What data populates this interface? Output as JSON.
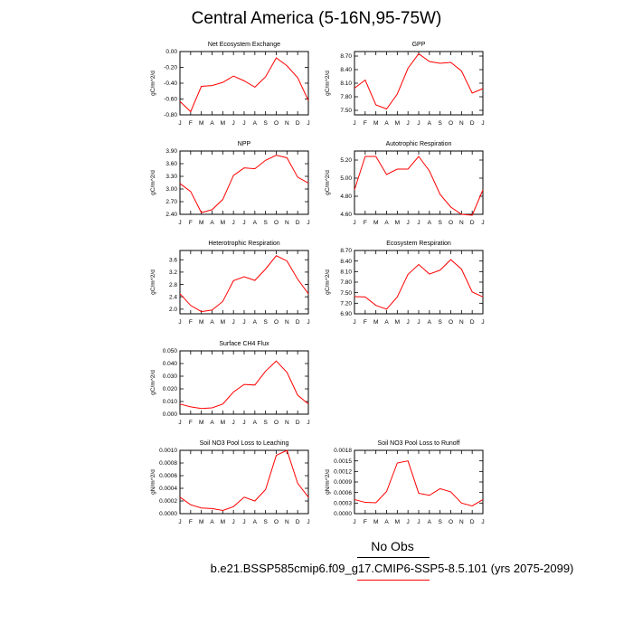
{
  "page": {
    "title": "Central America (5-16N,95-75W)",
    "legend_label": "No Obs",
    "caption": "b.e21.BSSP585cmip6.f09_g17.CMIP6-SSP5-8.5.101 (yrs 2075-2099)",
    "line_color": "#ff0000"
  },
  "chart_data": [
    {
      "type": "line",
      "title": "Net Ecosystem Exchange",
      "ylabel": "gC/m^2/d",
      "categories": [
        "J",
        "F",
        "M",
        "A",
        "M",
        "J",
        "J",
        "A",
        "S",
        "O",
        "N",
        "D",
        "J"
      ],
      "ylim": [
        -0.8,
        0.0
      ],
      "yticks": [
        "0.00",
        "-0.20",
        "-0.40",
        "-0.60",
        "-0.80"
      ],
      "ytick_values": [
        0.0,
        -0.2,
        -0.4,
        -0.6,
        -0.8
      ],
      "values": [
        -0.63,
        -0.76,
        -0.44,
        -0.43,
        -0.39,
        -0.31,
        -0.37,
        -0.45,
        -0.32,
        -0.08,
        -0.18,
        -0.33,
        -0.62
      ]
    },
    {
      "type": "line",
      "title": "GPP",
      "ylabel": "gC/m^2/d",
      "categories": [
        "J",
        "F",
        "M",
        "A",
        "M",
        "J",
        "J",
        "A",
        "S",
        "O",
        "N",
        "D",
        "J"
      ],
      "ylim": [
        7.4,
        8.8
      ],
      "yticks": [
        "8.70",
        "8.40",
        "8.10",
        "7.80",
        "7.50"
      ],
      "ytick_values": [
        8.7,
        8.4,
        8.1,
        7.8,
        7.5
      ],
      "values": [
        7.99,
        8.17,
        7.62,
        7.53,
        7.86,
        8.43,
        8.75,
        8.58,
        8.54,
        8.56,
        8.37,
        7.88,
        7.98
      ]
    },
    {
      "type": "line",
      "title": "NPP",
      "ylabel": "gC/m^2/d",
      "categories": [
        "J",
        "F",
        "M",
        "A",
        "M",
        "J",
        "J",
        "A",
        "S",
        "O",
        "N",
        "D",
        "J"
      ],
      "ylim": [
        2.4,
        3.9
      ],
      "yticks": [
        "3.90",
        "3.60",
        "3.30",
        "3.00",
        "2.70",
        "2.40"
      ],
      "ytick_values": [
        3.9,
        3.6,
        3.3,
        3.0,
        2.7,
        2.4
      ],
      "values": [
        3.13,
        2.94,
        2.44,
        2.51,
        2.75,
        3.32,
        3.5,
        3.48,
        3.68,
        3.8,
        3.74,
        3.28,
        3.14
      ]
    },
    {
      "type": "line",
      "title": "Autotrophic Respiration",
      "ylabel": "gC/m^2/d",
      "categories": [
        "J",
        "F",
        "M",
        "A",
        "M",
        "J",
        "J",
        "A",
        "S",
        "O",
        "N",
        "D",
        "J"
      ],
      "ylim": [
        4.6,
        5.3
      ],
      "yticks": [
        "5.20",
        "5.00",
        "4.80",
        "4.60"
      ],
      "ytick_values": [
        5.2,
        5.0,
        4.8,
        4.6
      ],
      "values": [
        4.87,
        5.24,
        5.24,
        5.04,
        5.1,
        5.1,
        5.24,
        5.08,
        4.82,
        4.68,
        4.6,
        4.59,
        4.87
      ]
    },
    {
      "type": "line",
      "title": "Heterotrophic Respiration",
      "ylabel": "gC/m^2/d",
      "categories": [
        "J",
        "F",
        "M",
        "A",
        "M",
        "J",
        "J",
        "A",
        "S",
        "O",
        "N",
        "D",
        "J"
      ],
      "ylim": [
        1.85,
        3.9
      ],
      "yticks": [
        "3.6",
        "3.2",
        "2.8",
        "2.4",
        "2.0"
      ],
      "ytick_values": [
        3.6,
        3.2,
        2.8,
        2.4,
        2.0
      ],
      "values": [
        2.5,
        2.12,
        1.92,
        1.97,
        2.25,
        2.92,
        3.05,
        2.93,
        3.3,
        3.73,
        3.56,
        2.97,
        2.5
      ]
    },
    {
      "type": "line",
      "title": "Ecosystem Respiration",
      "ylabel": "gC/m^2/d",
      "categories": [
        "J",
        "F",
        "M",
        "A",
        "M",
        "J",
        "J",
        "A",
        "S",
        "O",
        "N",
        "D",
        "J"
      ],
      "ylim": [
        6.9,
        8.7
      ],
      "yticks": [
        "8.70",
        "8.40",
        "8.10",
        "7.80",
        "7.50",
        "7.20",
        "6.90"
      ],
      "ytick_values": [
        8.7,
        8.4,
        8.1,
        7.8,
        7.5,
        7.2,
        6.9
      ],
      "values": [
        7.39,
        7.38,
        7.14,
        7.03,
        7.38,
        8.02,
        8.3,
        8.03,
        8.14,
        8.44,
        8.17,
        7.52,
        7.38
      ]
    },
    {
      "type": "line",
      "title": "Surface CH4 Flux",
      "ylabel": "gC/m^2/d",
      "categories": [
        "J",
        "F",
        "M",
        "A",
        "M",
        "J",
        "J",
        "A",
        "S",
        "O",
        "N",
        "D",
        "J"
      ],
      "ylim": [
        0.0,
        0.05
      ],
      "yticks": [
        "0.050",
        "0.040",
        "0.030",
        "0.020",
        "0.010",
        "0.000"
      ],
      "ytick_values": [
        0.05,
        0.04,
        0.03,
        0.02,
        0.01,
        0.0
      ],
      "values": [
        0.008,
        0.0058,
        0.0045,
        0.005,
        0.008,
        0.0175,
        0.0235,
        0.023,
        0.034,
        0.042,
        0.033,
        0.015,
        0.008
      ]
    },
    {
      "type": "line",
      "title": "Soil NO3 Pool Loss to Leaching",
      "ylabel": "gN/m^2/d",
      "categories": [
        "J",
        "F",
        "M",
        "A",
        "M",
        "J",
        "J",
        "A",
        "S",
        "O",
        "N",
        "D",
        "J"
      ],
      "ylim": [
        0.0,
        0.001
      ],
      "yticks": [
        "0.0010",
        "0.0008",
        "0.0006",
        "0.0004",
        "0.0002",
        "0.0000"
      ],
      "ytick_values": [
        0.001,
        0.0008,
        0.0006,
        0.0004,
        0.0002,
        0.0
      ],
      "values": [
        0.00026,
        0.00014,
        9e-05,
        8e-05,
        5e-05,
        0.00011,
        0.00026,
        0.0002,
        0.00038,
        0.00092,
        0.001,
        0.00048,
        0.00026
      ]
    },
    {
      "type": "line",
      "title": "Soil NO3 Pool Loss to Runoff",
      "ylabel": "gN/m^2/d",
      "categories": [
        "J",
        "F",
        "M",
        "A",
        "M",
        "J",
        "J",
        "A",
        "S",
        "O",
        "N",
        "D",
        "J"
      ],
      "ylim": [
        0.0,
        0.0018
      ],
      "yticks": [
        "0.0018",
        "0.0015",
        "0.0012",
        "0.0009",
        "0.0006",
        "0.0003",
        "0.0000"
      ],
      "ytick_values": [
        0.0018,
        0.0015,
        0.0012,
        0.0009,
        0.0006,
        0.0003,
        0.0
      ],
      "values": [
        0.0004,
        0.00032,
        0.00031,
        0.00063,
        0.00144,
        0.0015,
        0.00058,
        0.00052,
        0.00071,
        0.00062,
        0.0003,
        0.00022,
        0.0004
      ]
    }
  ]
}
